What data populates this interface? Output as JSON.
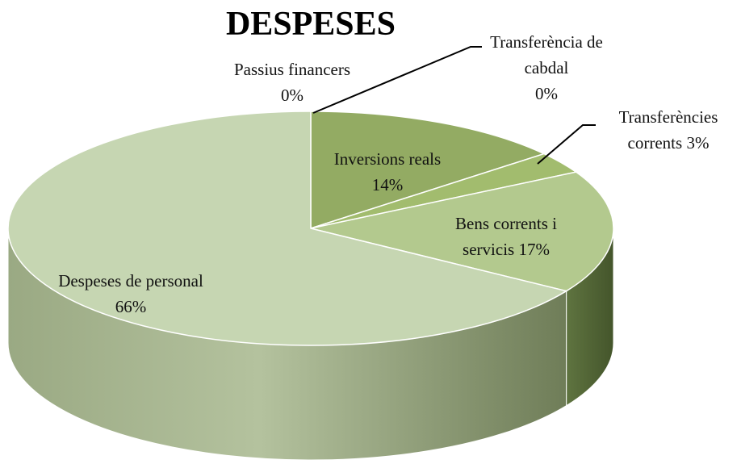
{
  "chart_data": {
    "type": "pie",
    "title": "DESPESES",
    "categories": [
      "Passius financers",
      "Transferència de cabdal",
      "Inversions reals",
      "Transferències corrents",
      "Bens corrents i servicis",
      "Despeses de personal"
    ],
    "values": [
      0,
      0,
      14,
      3,
      17,
      66
    ],
    "value_labels": [
      "0%",
      "0%",
      "14%",
      "3%",
      "17%",
      "66%"
    ],
    "colors": [
      "#7f9a4e",
      "#6f8a44",
      "#93ab63",
      "#a2bc6e",
      "#b3c98e",
      "#c6d6b2"
    ]
  }
}
